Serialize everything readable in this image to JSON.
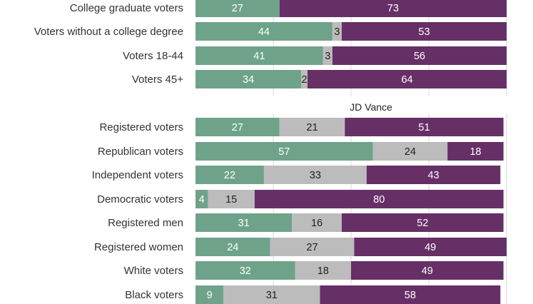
{
  "chart_data": {
    "type": "bar",
    "orientation": "horizontal",
    "stacked": true,
    "xlim": [
      0,
      100
    ],
    "grid": true,
    "segment_colors": [
      "#6ea38a",
      "#bcbcbc",
      "#662f66"
    ],
    "segment_label_colors": [
      "#ffffff",
      "#222222",
      "#ffffff"
    ],
    "sections": [
      {
        "title": "",
        "rows": [
          {
            "label": "College graduate voters",
            "values": [
              27,
              null,
              73
            ]
          },
          {
            "label": "Voters without a college degree",
            "values": [
              44,
              3,
              53
            ]
          },
          {
            "label": "Voters 18-44",
            "values": [
              41,
              3,
              56
            ]
          },
          {
            "label": "Voters  45+",
            "values": [
              34,
              2,
              64
            ]
          }
        ]
      },
      {
        "title": "JD Vance",
        "rows": [
          {
            "label": "Registered voters",
            "values": [
              27,
              21,
              51
            ]
          },
          {
            "label": "Republican voters",
            "values": [
              57,
              24,
              18
            ]
          },
          {
            "label": "Independent voters",
            "values": [
              22,
              33,
              43
            ]
          },
          {
            "label": "Democratic voters",
            "values": [
              4,
              15,
              80
            ]
          },
          {
            "label": "Registered men",
            "values": [
              31,
              16,
              52
            ]
          },
          {
            "label": "Registered women",
            "values": [
              24,
              27,
              49
            ]
          },
          {
            "label": "White voters",
            "values": [
              32,
              18,
              49
            ]
          },
          {
            "label": "Black voters",
            "values": [
              9,
              31,
              58
            ]
          }
        ]
      }
    ]
  }
}
